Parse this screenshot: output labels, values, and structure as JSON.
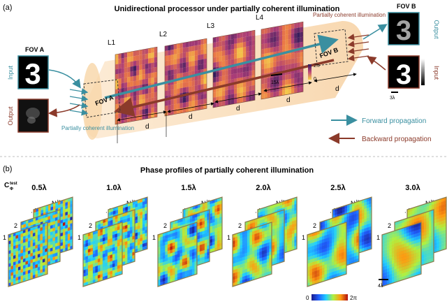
{
  "panel_a": {
    "label": "(a)",
    "title": "Unidirectional processor under partially coherent illumination",
    "fov_a_label": "FOV A",
    "fov_b_label": "FOV B",
    "fov_a_box": "FOV A",
    "fov_b_box": "FOV B",
    "input_left": "Input",
    "output_left": "Output",
    "input_right": "Input",
    "output_right": "Output",
    "layers": [
      "L1",
      "L2",
      "L3",
      "L4"
    ],
    "spacing": "d",
    "scale_layer": "15λ",
    "scale_fov": "3λ",
    "colorbar_max": "2π",
    "colorbar_min": "0",
    "pci_left": "Partially coherent illumination",
    "pci_right": "Partially coherent illumination",
    "legend_forward": "Forward propagation",
    "legend_backward": "Backward propagation",
    "digit": "3",
    "colors": {
      "forward": "#3a8fa0",
      "backward": "#8b3a2a",
      "beam": "#f6c98f"
    }
  },
  "panel_b": {
    "label": "(b)",
    "title": "Phase profiles of partially coherent  illumination",
    "c_label": "C",
    "c_sub": "Φ",
    "c_sup": "test",
    "stack_n": "N",
    "stack_n_sub": "Φ",
    "stack_n_sup": "test",
    "stack_2": "2",
    "stack_1": "1",
    "coherence_values": [
      {
        "value": "0.5λ",
        "period": 4
      },
      {
        "value": "1.0λ",
        "period": 8
      },
      {
        "value": "1.5λ",
        "period": 12
      },
      {
        "value": "2.0λ",
        "period": 17
      },
      {
        "value": "2.5λ",
        "period": 24
      },
      {
        "value": "3.0λ",
        "period": 34
      }
    ],
    "scale": "4λ",
    "colorbar_min": "0",
    "colorbar_max": "2π"
  }
}
